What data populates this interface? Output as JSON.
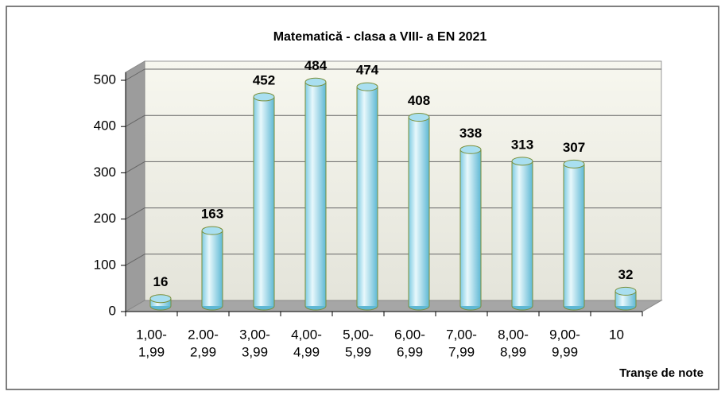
{
  "chart_data": {
    "type": "bar",
    "title": "Matematică - clasa a VIII- a  EN 2021",
    "x_label": "Tranşe de note",
    "categories": [
      [
        "1,00-",
        "1,99"
      ],
      [
        "2.00-",
        "2,99"
      ],
      [
        "3,00-",
        "3,99"
      ],
      [
        "4,00-",
        "4,99"
      ],
      [
        "5,00-",
        "5,99"
      ],
      [
        "6,00-",
        "6,99"
      ],
      [
        "7,00-",
        "7,99"
      ],
      [
        "8,00-",
        "8,99"
      ],
      [
        "9,00-",
        "9,99"
      ],
      [
        "10"
      ]
    ],
    "values": [
      16,
      163,
      452,
      484,
      474,
      408,
      338,
      313,
      307,
      32
    ],
    "color": "#a9dff0",
    "ylim": [
      0,
      500
    ],
    "yticks": [
      0,
      100,
      200,
      300,
      400,
      500
    ],
    "grid": true
  }
}
